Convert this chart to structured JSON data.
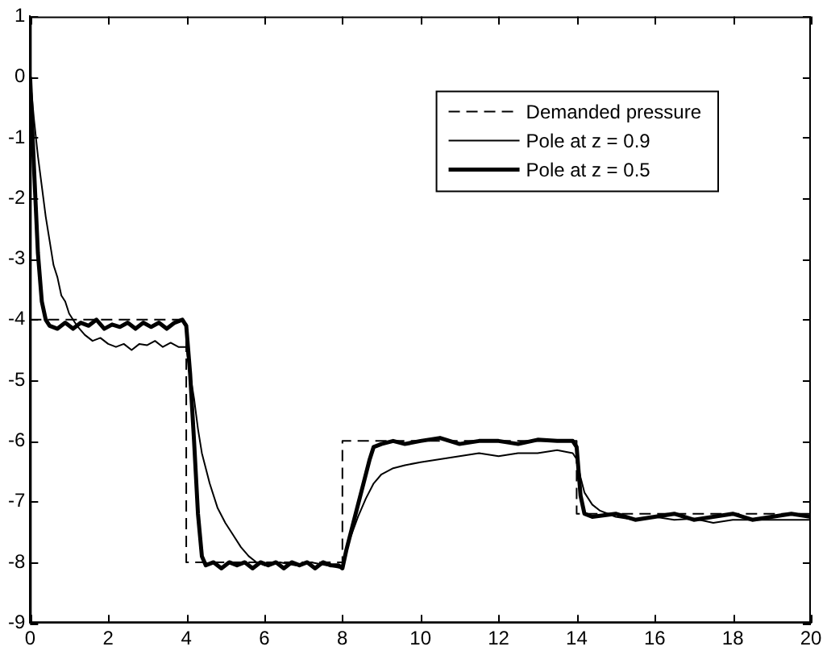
{
  "chart_data": {
    "type": "line",
    "xlim": [
      0,
      20
    ],
    "xticks": [
      0,
      2,
      4,
      6,
      8,
      10,
      12,
      14,
      16,
      18,
      20
    ],
    "ylim": [
      -9,
      1
    ],
    "yticks": [
      -9,
      -8,
      -7,
      -6,
      -5,
      -4,
      -3,
      -2,
      -1,
      0,
      1
    ],
    "grid": false,
    "legend": "top right",
    "marker": "none",
    "series": [
      {
        "name": "Demanded pressure",
        "color": "#000000",
        "line_style": "dashed",
        "x": [
          0,
          4,
          4,
          8,
          8,
          14,
          14,
          20
        ],
        "values": [
          -4,
          -4,
          -8,
          -8,
          -6,
          -6,
          -7.2,
          -7.2
        ]
      },
      {
        "name": "Pole at z = 0.9",
        "color": "#000000",
        "line_style": "solid",
        "x": [
          0,
          0.1,
          0.2,
          0.3,
          0.4,
          0.5,
          0.6,
          0.7,
          0.8,
          0.9,
          1.0,
          1.2,
          1.4,
          1.6,
          1.8,
          2.0,
          2.2,
          2.4,
          2.6,
          2.8,
          3.0,
          3.2,
          3.4,
          3.6,
          3.8,
          4.0,
          4.1,
          4.2,
          4.3,
          4.4,
          4.6,
          4.8,
          5.0,
          5.2,
          5.4,
          5.6,
          5.8,
          6.0,
          6.4,
          6.8,
          7.2,
          7.6,
          8.0,
          8.1,
          8.2,
          8.4,
          8.6,
          8.8,
          9.0,
          9.3,
          9.6,
          10,
          10.5,
          11,
          11.5,
          12,
          12.5,
          13,
          13.5,
          13.9,
          14.0,
          14.1,
          14.2,
          14.4,
          14.6,
          14.8,
          15.0,
          15.5,
          16,
          16.5,
          17,
          17.5,
          18,
          18.5,
          19,
          19.5,
          20
        ],
        "values": [
          0,
          -0.7,
          -1.3,
          -1.8,
          -2.3,
          -2.7,
          -3.1,
          -3.3,
          -3.6,
          -3.7,
          -3.9,
          -4.1,
          -4.25,
          -4.35,
          -4.3,
          -4.4,
          -4.45,
          -4.4,
          -4.5,
          -4.4,
          -4.42,
          -4.35,
          -4.45,
          -4.38,
          -4.45,
          -4.45,
          -4.9,
          -5.3,
          -5.8,
          -6.2,
          -6.7,
          -7.1,
          -7.35,
          -7.55,
          -7.75,
          -7.9,
          -8.0,
          -8.05,
          -8.0,
          -8.05,
          -8.0,
          -8.05,
          -8.1,
          -7.8,
          -7.6,
          -7.25,
          -6.95,
          -6.7,
          -6.55,
          -6.45,
          -6.4,
          -6.35,
          -6.3,
          -6.25,
          -6.2,
          -6.25,
          -6.2,
          -6.2,
          -6.15,
          -6.2,
          -6.3,
          -6.6,
          -6.85,
          -7.05,
          -7.15,
          -7.2,
          -7.25,
          -7.3,
          -7.25,
          -7.3,
          -7.28,
          -7.35,
          -7.3,
          -7.3,
          -7.3,
          -7.3,
          -7.3
        ]
      },
      {
        "name": "Pole at z = 0.5",
        "color": "#000000",
        "line_style": "solid",
        "x": [
          0,
          0.1,
          0.2,
          0.3,
          0.4,
          0.5,
          0.7,
          0.9,
          1.1,
          1.3,
          1.5,
          1.7,
          1.9,
          2.1,
          2.3,
          2.5,
          2.7,
          2.9,
          3.1,
          3.3,
          3.5,
          3.7,
          3.9,
          4.0,
          4.1,
          4.2,
          4.3,
          4.4,
          4.5,
          4.7,
          4.9,
          5.1,
          5.3,
          5.5,
          5.7,
          5.9,
          6.1,
          6.3,
          6.5,
          6.7,
          6.9,
          7.1,
          7.3,
          7.5,
          7.7,
          7.9,
          8.0,
          8.1,
          8.3,
          8.5,
          8.7,
          8.8,
          9.0,
          9.3,
          9.6,
          10,
          10.5,
          11,
          11.5,
          12,
          12.5,
          13,
          13.5,
          13.9,
          14.0,
          14.1,
          14.2,
          14.4,
          15,
          15.5,
          16,
          16.5,
          17,
          17.5,
          18,
          18.5,
          19,
          19.5,
          20
        ],
        "values": [
          0,
          -1.5,
          -2.9,
          -3.7,
          -4.0,
          -4.1,
          -4.15,
          -4.05,
          -4.15,
          -4.05,
          -4.1,
          -4.0,
          -4.15,
          -4.08,
          -4.12,
          -4.05,
          -4.15,
          -4.05,
          -4.12,
          -4.05,
          -4.15,
          -4.05,
          -4.0,
          -4.1,
          -4.9,
          -6.0,
          -7.2,
          -7.9,
          -8.05,
          -8.0,
          -8.1,
          -8.0,
          -8.05,
          -8.0,
          -8.1,
          -8.0,
          -8.05,
          -8.0,
          -8.1,
          -8.0,
          -8.05,
          -8.0,
          -8.1,
          -8.0,
          -8.05,
          -8.05,
          -8.1,
          -7.8,
          -7.3,
          -6.8,
          -6.3,
          -6.1,
          -6.05,
          -6.0,
          -6.05,
          -6.0,
          -5.95,
          -6.05,
          -6.0,
          -6.0,
          -6.05,
          -5.98,
          -6.0,
          -6.0,
          -6.1,
          -6.9,
          -7.2,
          -7.25,
          -7.2,
          -7.3,
          -7.25,
          -7.2,
          -7.3,
          -7.25,
          -7.2,
          -7.3,
          -7.25,
          -7.2,
          -7.25
        ]
      }
    ]
  }
}
